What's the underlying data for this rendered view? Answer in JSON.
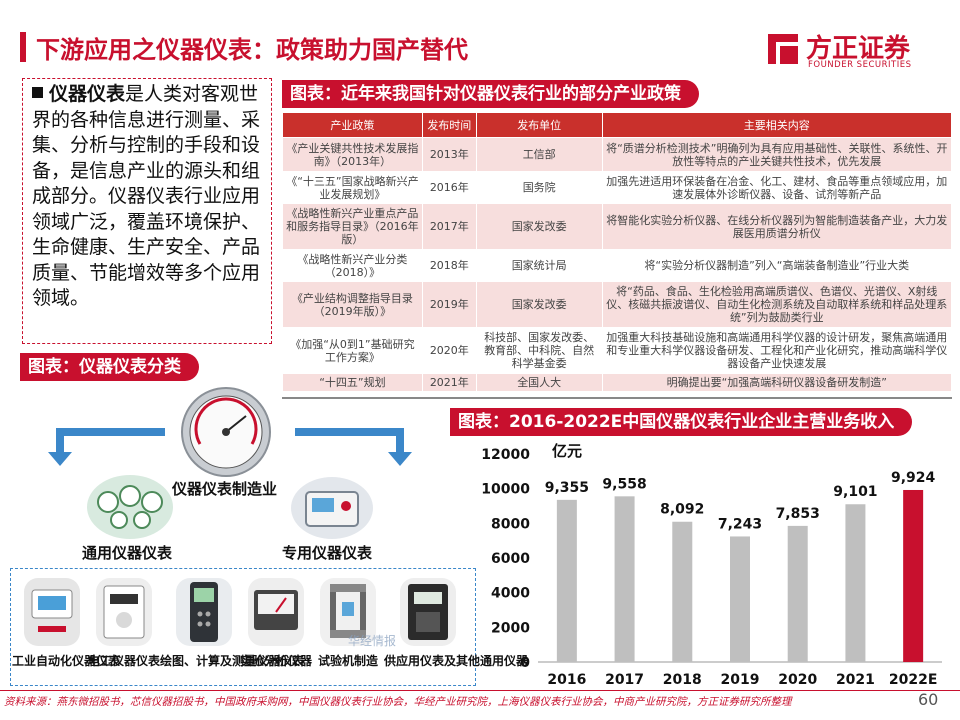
{
  "header": {
    "title": "下游应用之仪器仪表：政策助力国产替代",
    "logo_cn": "方正证券",
    "logo_en": "FOUNDER SECURITIES"
  },
  "intro": {
    "bold": "仪器仪表",
    "text": "是人类对客观世界的各种信息进行测量、采集、分析与控制的手段和设备，是信息产业的源头和组成部分。仪器仪表行业应用领域广泛，覆盖环境保护、生命健康、生产安全、产品质量、节能增效等多个应用领域。"
  },
  "policy_table": {
    "tag": "图表：近年来我国针对仪器仪表行业的部分产业政策",
    "headers": [
      "产业政策",
      "发布时间",
      "发布单位",
      "主要相关内容"
    ],
    "rows": [
      [
        "《产业关键共性技术发展指南》（2013年）",
        "2013年",
        "工信部",
        "将“质谱分析检测技术”明确列为具有应用基础性、关联性、系统性、开放性等特点的产业关键共性技术，优先发展"
      ],
      [
        "《“十三五”国家战略新兴产业发展规划》",
        "2016年",
        "国务院",
        "加强先进适用环保装备在冶金、化工、建材、食品等重点领域应用，加速发展体外诊断仪器、设备、试剂等新产品"
      ],
      [
        "《战略性新兴产业重点产品和服务指导目录》（2016年版）",
        "2017年",
        "国家发改委",
        "将智能化实验分析仪器、在线分析仪器列为智能制造装备产业，大力发展医用质谱分析仪"
      ],
      [
        "《战略性新兴产业分类（2018）》",
        "2018年",
        "国家统计局",
        "将“实验分析仪器制造”列入“高端装备制造业”行业大类"
      ],
      [
        "《产业结构调整指导目录（2019年版）》",
        "2019年",
        "国家发改委",
        "将“药品、食品、生化检验用高端质谱仪、色谱仪、光谱仪、X射线仪、核磁共振波谱仪、自动生化检测系统及自动取样系统和样品处理系统”列为鼓励类行业"
      ],
      [
        "《加强“从0到1”基础研究工作方案》",
        "2020年",
        "科技部、国家发改委、教育部、中科院、自然科学基金委",
        "加强重大科技基础设施和高端通用科学仪器的设计研发，聚焦高端通用和专业重大科学仪器设备研发、工程化和产业化研究，推动高端科学仪器设备产业快速发展"
      ],
      [
        "“十四五”规划",
        "2021年",
        "全国人大",
        "明确提出要“加强高端科研仪器设备研发制造”"
      ]
    ]
  },
  "classification": {
    "tag": "图表：仪器仪表分类",
    "center_label": "仪器仪表制造业",
    "left_label": "通用仪器仪表",
    "right_label": "专用仪器仪表",
    "watermark": "华经情报",
    "items": [
      "工业自动化仪器仪表",
      "电工仪器仪表",
      "绘图、计算及测量仪器仪表",
      "实验分析仪器",
      "试验机制造",
      "供应用仪表及其他通用仪器"
    ]
  },
  "revenue_chart": {
    "tag": "图表：2016-2022E中国仪器仪表行业企业主营业务收入",
    "unit": "亿元"
  },
  "chart_data": {
    "type": "bar",
    "title": "2016-2022E中国仪器仪表行业企业主营业务收入",
    "ylabel": "亿元",
    "categories": [
      "2016",
      "2017",
      "2018",
      "2019",
      "2020",
      "2021",
      "2022E"
    ],
    "values": [
      9355,
      9558,
      8092,
      7243,
      7853,
      9101,
      9924
    ],
    "value_labels": [
      "9,355",
      "9,558",
      "8,092",
      "7,243",
      "7,853",
      "9,101",
      "9,924"
    ],
    "yticks": [
      "0",
      "2000",
      "4000",
      "6000",
      "8000",
      "10000",
      "12000"
    ],
    "ylim": [
      0,
      12000
    ],
    "bar_color": "#bfbfbf",
    "highlight_color": "#c8102e",
    "highlight_index": 6,
    "grid": false
  },
  "footer": {
    "source": "资料来源：燕东微招股书，芯信仪器招股书，中国政府采购网，中国仪器仪表行业协会，华经产业研究院，上海仪器仪表行业协会，中商产业研究院，方正证券研究所整理",
    "page": "60"
  }
}
